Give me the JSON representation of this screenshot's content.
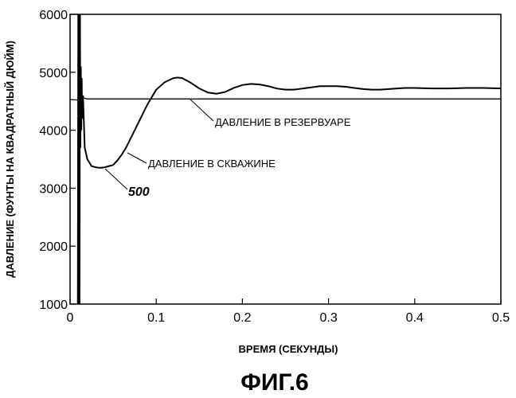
{
  "chart_data": {
    "type": "line",
    "title": "ФИГ.6",
    "xlabel": "ВРЕМЯ (СЕКУНДЫ)",
    "ylabel": "ДАВЛЕНИЕ (ФУНТЫ НА КВАДРАТНЫЙ ДЮЙМ)",
    "xlim": [
      0,
      0.5
    ],
    "ylim": [
      1000,
      6000
    ],
    "x_ticks": [
      0,
      0.1,
      0.2,
      0.3,
      0.4,
      0.5
    ],
    "x_tick_labels": [
      "0",
      "0.1",
      "0.2",
      "0.3",
      "0.4",
      "0.5"
    ],
    "y_ticks": [
      1000,
      2000,
      3000,
      4000,
      5000,
      6000
    ],
    "y_tick_labels": [
      "1000",
      "2000",
      "3000",
      "4000",
      "5000",
      "6000"
    ],
    "grid": false,
    "series": [
      {
        "name": "ДАВЛЕНИЕ В РЕЗЕРВУАРЕ",
        "x": [
          0,
          0.01,
          0.015,
          0.02,
          0.1,
          0.2,
          0.3,
          0.4,
          0.5
        ],
        "y": [
          4530,
          4520,
          4560,
          4540,
          4540,
          4540,
          4540,
          4540,
          4540
        ]
      },
      {
        "name": "ДАВЛЕНИЕ В СКВАЖИНЕ",
        "x": [
          0.009,
          0.0095,
          0.01,
          0.0105,
          0.011,
          0.0115,
          0.012,
          0.0125,
          0.013,
          0.0135,
          0.014,
          0.015,
          0.017,
          0.02,
          0.025,
          0.03,
          0.035,
          0.04,
          0.045,
          0.05,
          0.055,
          0.06,
          0.065,
          0.07,
          0.08,
          0.09,
          0.1,
          0.11,
          0.12,
          0.125,
          0.13,
          0.14,
          0.15,
          0.16,
          0.17,
          0.18,
          0.19,
          0.2,
          0.21,
          0.22,
          0.23,
          0.24,
          0.25,
          0.26,
          0.27,
          0.28,
          0.29,
          0.3,
          0.31,
          0.32,
          0.33,
          0.34,
          0.35,
          0.36,
          0.37,
          0.38,
          0.39,
          0.4,
          0.42,
          0.44,
          0.46,
          0.48,
          0.5
        ],
        "y": [
          1000,
          6000,
          1000,
          6000,
          1000,
          6000,
          3700,
          5100,
          4000,
          4900,
          4200,
          4600,
          3700,
          3500,
          3380,
          3360,
          3350,
          3360,
          3380,
          3400,
          3480,
          3580,
          3700,
          3850,
          4150,
          4450,
          4700,
          4830,
          4900,
          4910,
          4900,
          4820,
          4720,
          4650,
          4630,
          4660,
          4730,
          4780,
          4800,
          4790,
          4760,
          4720,
          4700,
          4700,
          4720,
          4740,
          4760,
          4760,
          4760,
          4750,
          4730,
          4710,
          4700,
          4700,
          4710,
          4720,
          4730,
          4730,
          4720,
          4720,
          4730,
          4730,
          4720
        ]
      }
    ],
    "annotations": [
      {
        "text": "ДАВЛЕНИЕ В РЕЗЕРВУАРЕ",
        "x": 0.14,
        "y": 4540
      },
      {
        "text": "ДАВЛЕНИЕ В СКВАЖИНЕ",
        "x": 0.066,
        "y": 3480
      },
      {
        "text": "500",
        "x": 0.04,
        "y": 3350
      }
    ]
  }
}
